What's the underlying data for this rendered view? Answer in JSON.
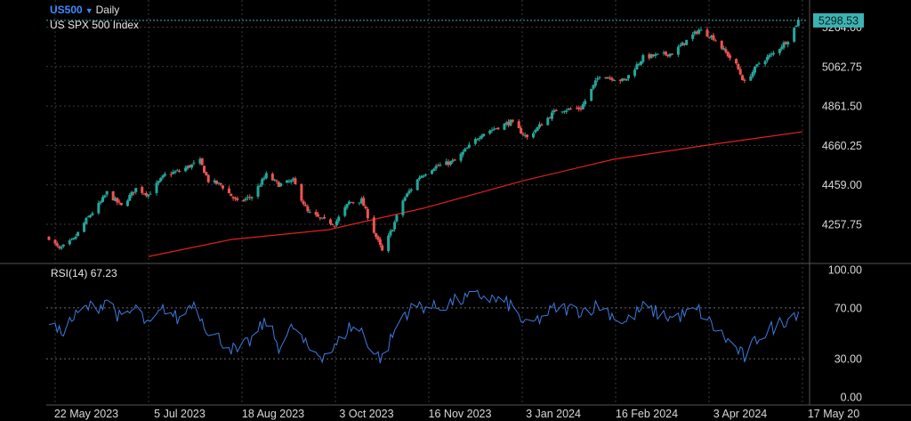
{
  "header": {
    "symbol": "US500",
    "timeframe": "Daily",
    "description": "US SPX 500 Index"
  },
  "price_badge": {
    "label": "5298.53",
    "color": "#3bb3b3"
  },
  "rsi_panel": {
    "label": "RSI(14)",
    "value": "67.23"
  },
  "colors": {
    "up": "#26a69a",
    "down": "#ef5350",
    "ma": "#e02020",
    "rsi": "#3d7be0",
    "grid": "#3a3a3a",
    "axis": "#555555"
  },
  "chart_data": [
    {
      "type": "candlestick",
      "title": "US SPX 500 Index",
      "xlabel": "",
      "ylabel": "",
      "x_ticks": [
        "22 May 2023",
        "5 Jul 2023",
        "18 Aug 2023",
        "3 Oct 2023",
        "16 Nov 2023",
        "3 Jan 2024",
        "16 Feb 2024",
        "3 Apr 2024",
        "17 May 20"
      ],
      "y_ticks": [
        4257.75,
        4459.0,
        4660.25,
        4861.5,
        5062.75,
        5264.0
      ],
      "y_tick_labels": [
        "4257.75",
        "4459.00",
        "4660.25",
        "4861.50",
        "5062.75",
        "5264.00"
      ],
      "ylim": [
        4093,
        5350
      ],
      "last_price": 5298.53,
      "grid": true,
      "close_path": [
        [
          "2023-05-19",
          4190
        ],
        [
          "2023-05-24",
          4130
        ],
        [
          "2023-05-31",
          4180
        ],
        [
          "2023-06-06",
          4280
        ],
        [
          "2023-06-13",
          4370
        ],
        [
          "2023-06-16",
          4420
        ],
        [
          "2023-06-23",
          4350
        ],
        [
          "2023-06-30",
          4440
        ],
        [
          "2023-07-06",
          4410
        ],
        [
          "2023-07-14",
          4510
        ],
        [
          "2023-07-21",
          4530
        ],
        [
          "2023-07-27",
          4560
        ],
        [
          "2023-07-31",
          4580
        ],
        [
          "2023-08-04",
          4480
        ],
        [
          "2023-08-10",
          4460
        ],
        [
          "2023-08-18",
          4370
        ],
        [
          "2023-08-25",
          4400
        ],
        [
          "2023-09-01",
          4510
        ],
        [
          "2023-09-07",
          4460
        ],
        [
          "2023-09-14",
          4480
        ],
        [
          "2023-09-21",
          4320
        ],
        [
          "2023-09-28",
          4280
        ],
        [
          "2023-10-04",
          4260
        ],
        [
          "2023-10-11",
          4370
        ],
        [
          "2023-10-17",
          4380
        ],
        [
          "2023-10-23",
          4220
        ],
        [
          "2023-10-27",
          4120
        ],
        [
          "2023-11-01",
          4240
        ],
        [
          "2023-11-06",
          4380
        ],
        [
          "2023-11-14",
          4500
        ],
        [
          "2023-11-21",
          4550
        ],
        [
          "2023-12-01",
          4580
        ],
        [
          "2023-12-14",
          4720
        ],
        [
          "2023-12-28",
          4780
        ],
        [
          "2024-01-05",
          4700
        ],
        [
          "2024-01-19",
          4840
        ],
        [
          "2024-01-31",
          4850
        ],
        [
          "2024-02-09",
          5020
        ],
        [
          "2024-02-21",
          4990
        ],
        [
          "2024-03-01",
          5110
        ],
        [
          "2024-03-15",
          5130
        ],
        [
          "2024-03-28",
          5250
        ],
        [
          "2024-04-04",
          5210
        ],
        [
          "2024-04-15",
          5070
        ],
        [
          "2024-04-19",
          4980
        ],
        [
          "2024-04-26",
          5080
        ],
        [
          "2024-05-03",
          5130
        ],
        [
          "2024-05-10",
          5200
        ],
        [
          "2024-05-15",
          5298.53
        ]
      ],
      "moving_average": {
        "points": [
          [
            "2023-07-06",
            4093
          ],
          [
            "2023-08-15",
            4180
          ],
          [
            "2023-10-01",
            4230
          ],
          [
            "2023-11-16",
            4340
          ],
          [
            "2024-01-03",
            4480
          ],
          [
            "2024-02-16",
            4590
          ],
          [
            "2024-04-03",
            4665
          ],
          [
            "2024-05-17",
            4730
          ]
        ]
      }
    },
    {
      "type": "line",
      "title": "RSI(14)",
      "series": [
        {
          "name": "RSI(14)",
          "values": [
            [
              "2023-05-19",
              60
            ],
            [
              "2023-05-24",
              50
            ],
            [
              "2023-05-31",
              62
            ],
            [
              "2023-06-06",
              70
            ],
            [
              "2023-06-13",
              72
            ],
            [
              "2023-06-16",
              78
            ],
            [
              "2023-06-23",
              60
            ],
            [
              "2023-06-30",
              70
            ],
            [
              "2023-07-06",
              55
            ],
            [
              "2023-07-14",
              70
            ],
            [
              "2023-07-21",
              60
            ],
            [
              "2023-07-27",
              75
            ],
            [
              "2023-07-31",
              65
            ],
            [
              "2023-08-04",
              52
            ],
            [
              "2023-08-10",
              45
            ],
            [
              "2023-08-18",
              35
            ],
            [
              "2023-08-25",
              45
            ],
            [
              "2023-09-01",
              60
            ],
            [
              "2023-09-07",
              40
            ],
            [
              "2023-09-14",
              55
            ],
            [
              "2023-09-21",
              38
            ],
            [
              "2023-09-28",
              33
            ],
            [
              "2023-10-04",
              38
            ],
            [
              "2023-10-11",
              55
            ],
            [
              "2023-10-17",
              52
            ],
            [
              "2023-10-23",
              35
            ],
            [
              "2023-10-27",
              30
            ],
            [
              "2023-11-01",
              48
            ],
            [
              "2023-11-06",
              65
            ],
            [
              "2023-11-14",
              72
            ],
            [
              "2023-11-21",
              70
            ],
            [
              "2023-12-01",
              75
            ],
            [
              "2023-12-14",
              80
            ],
            [
              "2023-12-28",
              72
            ],
            [
              "2024-01-05",
              55
            ],
            [
              "2024-01-19",
              70
            ],
            [
              "2024-01-31",
              68
            ],
            [
              "2024-02-09",
              72
            ],
            [
              "2024-02-21",
              58
            ],
            [
              "2024-03-01",
              70
            ],
            [
              "2024-03-15",
              62
            ],
            [
              "2024-03-28",
              68
            ],
            [
              "2024-04-04",
              55
            ],
            [
              "2024-04-15",
              38
            ],
            [
              "2024-04-19",
              31
            ],
            [
              "2024-04-26",
              48
            ],
            [
              "2024-05-03",
              55
            ],
            [
              "2024-05-10",
              62
            ],
            [
              "2024-05-15",
              67.23
            ]
          ]
        }
      ],
      "y_ticks": [
        0,
        30,
        70,
        100
      ],
      "y_tick_labels": [
        "0.00",
        "30.00",
        "70.00",
        "100.00"
      ],
      "ylim": [
        0,
        100
      ],
      "last_value": 67.23
    }
  ]
}
